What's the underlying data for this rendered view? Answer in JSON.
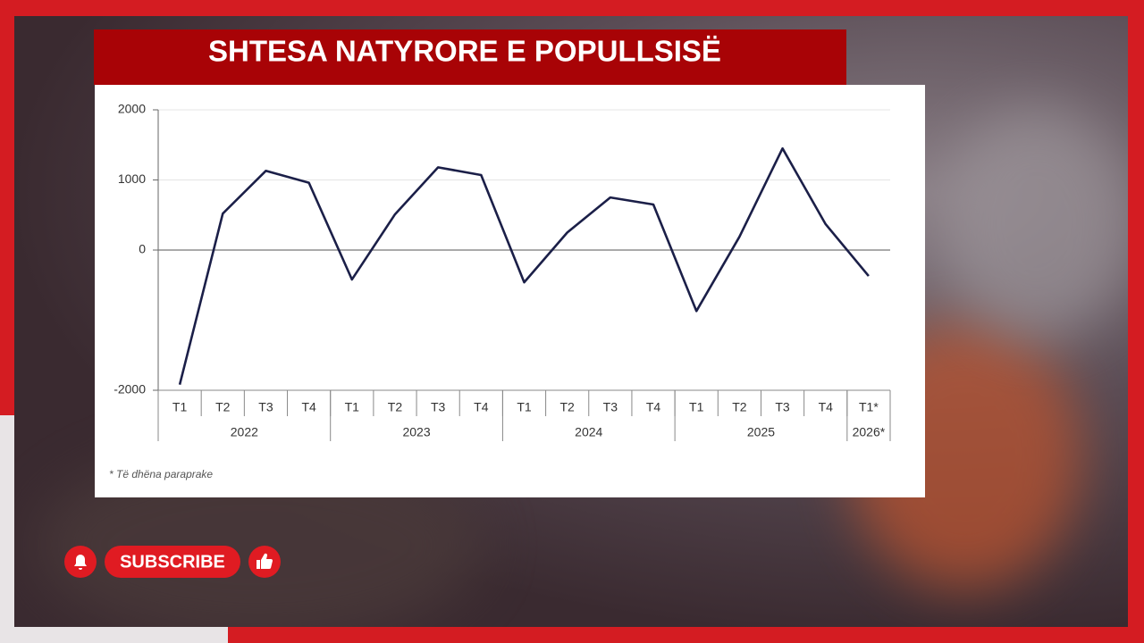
{
  "chart_data": {
    "type": "line",
    "title": "SHTESA NATYRORE E POPULLSISË",
    "groups": [
      {
        "name": "2022",
        "categories": [
          "T1",
          "T2",
          "T3",
          "T4"
        ]
      },
      {
        "name": "2023",
        "categories": [
          "T1",
          "T2",
          "T3",
          "T4"
        ]
      },
      {
        "name": "2024",
        "categories": [
          "T1",
          "T2",
          "T3",
          "T4"
        ]
      },
      {
        "name": "2025",
        "categories": [
          "T1",
          "T2",
          "T3",
          "T4"
        ]
      },
      {
        "name": "2026*",
        "categories": [
          "T1*"
        ]
      }
    ],
    "series": [
      {
        "color": "#1b1f48",
        "values": [
          -1920,
          520,
          1130,
          960,
          -420,
          510,
          1180,
          1070,
          -460,
          250,
          750,
          650,
          -870,
          190,
          1450,
          370,
          -370
        ]
      }
    ],
    "ylim": [
      -2000,
      2000
    ],
    "yticks": [
      -2000,
      0,
      1000,
      2000
    ],
    "grid": true,
    "footnote": "* Të dhëna paraprake"
  },
  "overlay": {
    "subscribe": "SUBSCRIBE"
  }
}
